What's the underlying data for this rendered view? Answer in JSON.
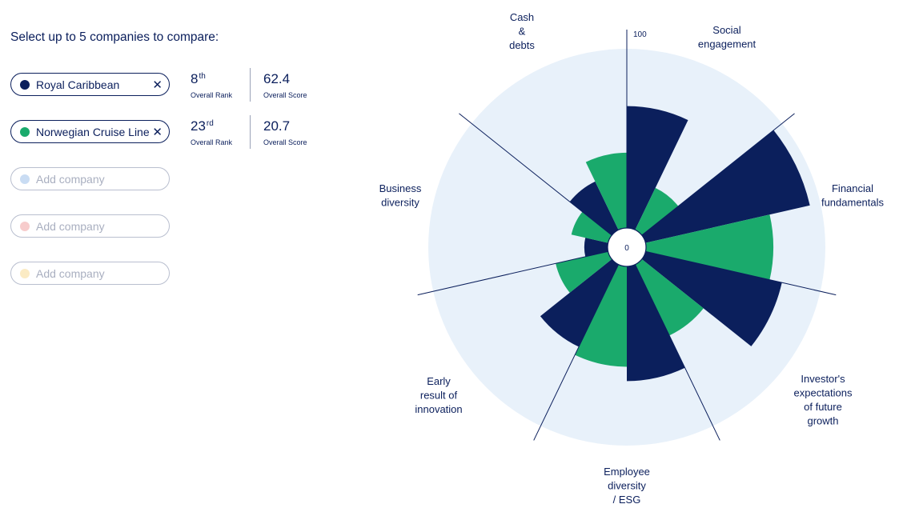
{
  "prompt": "Select up to 5 companies to compare:",
  "companies": [
    {
      "name": "Royal Caribbean",
      "color": "#0b1f5c",
      "rank": "8",
      "rank_suffix": "th",
      "rank_label": "Overall Rank",
      "score": "62.4",
      "score_label": "Overall Score"
    },
    {
      "name": "Norwegian Cruise Line",
      "color": "#1aaa6c",
      "rank": "23",
      "rank_suffix": "rd",
      "rank_label": "Overall Rank",
      "score": "20.7",
      "score_label": "Overall Score"
    }
  ],
  "empty_slots": [
    {
      "placeholder": "Add company",
      "color": "#c9dcf3"
    },
    {
      "placeholder": "Add company",
      "color": "#f7cccc"
    },
    {
      "placeholder": "Add company",
      "color": "#fbebc4"
    }
  ],
  "icons": {
    "remove": "close-icon"
  },
  "chart_data": {
    "type": "polar-bar",
    "radial_range": [
      0,
      100
    ],
    "center_label": "0",
    "max_label": "100",
    "background_color": "#e8f1fa",
    "categories": [
      {
        "label": [
          "Social",
          "engagement"
        ]
      },
      {
        "label": [
          "Financial",
          "fundamentals"
        ]
      },
      {
        "label": [
          "Investor's",
          "expectations",
          "of future",
          "growth"
        ]
      },
      {
        "label": [
          "Employee",
          "diversity",
          "/ ESG"
        ]
      },
      {
        "label": [
          "Early",
          "result of",
          "innovation"
        ]
      },
      {
        "label": [
          "Business",
          "diversity"
        ]
      },
      {
        "label": [
          "Cash",
          "&",
          "debts"
        ]
      }
    ],
    "series": [
      {
        "name": "Royal Caribbean",
        "color": "#0b1f5c",
        "values": [
          68,
          94,
          78,
          64,
          51,
          13,
          30
        ]
      },
      {
        "name": "Norwegian Cruise Line",
        "color": "#1aaa6c",
        "values": [
          26,
          71,
          44,
          56,
          30,
          21,
          42
        ]
      }
    ]
  }
}
